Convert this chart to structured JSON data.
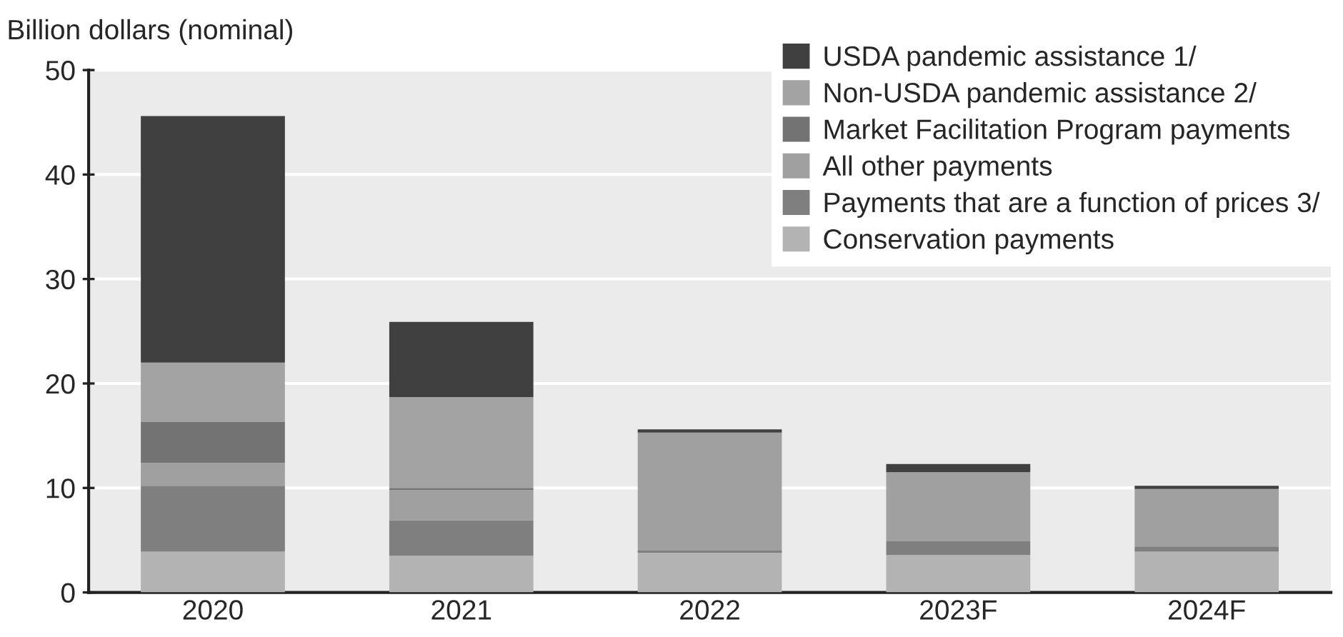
{
  "chart_data": {
    "type": "bar",
    "stacked": true,
    "ylabel": "Billion dollars (nominal)",
    "categories": [
      "2020",
      "2021",
      "2022",
      "2023F",
      "2024F"
    ],
    "series": [
      {
        "name": "Conservation payments",
        "color": "#b3b3b3",
        "values": [
          3.9,
          3.5,
          3.8,
          3.6,
          3.9
        ]
      },
      {
        "name": "Payments that are a function of prices 3/",
        "color": "#7f7f7f",
        "values": [
          6.3,
          3.4,
          0.2,
          1.3,
          0.5
        ]
      },
      {
        "name": "All other payments",
        "color": "#a0a0a0",
        "values": [
          2.2,
          2.9,
          11.3,
          6.6,
          5.5
        ]
      },
      {
        "name": "Market Facilitation Program payments",
        "color": "#737373",
        "values": [
          3.9,
          0.2,
          0,
          0,
          0
        ]
      },
      {
        "name": "Non-USDA pandemic assistance 2/",
        "color": "#a3a3a3",
        "values": [
          5.7,
          8.7,
          0,
          0,
          0
        ]
      },
      {
        "name": "USDA pandemic assistance 1/",
        "color": "#404040",
        "values": [
          23.6,
          7.2,
          0.3,
          0.8,
          0.3
        ]
      }
    ],
    "ylim": [
      0,
      50
    ],
    "yticks": [
      0,
      10,
      20,
      30,
      40,
      50
    ],
    "grid": "y",
    "legend": "top right"
  }
}
